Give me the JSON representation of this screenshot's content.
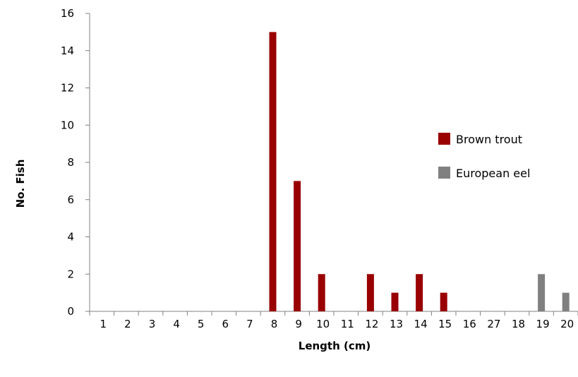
{
  "chart_data": {
    "type": "bar",
    "title": "",
    "xlabel": "Length (cm)",
    "ylabel": "No. Fish",
    "categories": [
      "1",
      "2",
      "3",
      "4",
      "5",
      "6",
      "7",
      "8",
      "9",
      "10",
      "11",
      "12",
      "13",
      "14",
      "15",
      "16",
      "27",
      "18",
      "19",
      "20"
    ],
    "ylim": [
      0,
      16
    ],
    "yticks": [
      "0",
      "2",
      "4",
      "6",
      "8",
      "10",
      "12",
      "14",
      "16"
    ],
    "grid": false,
    "legend_position": "right",
    "series": [
      {
        "name": "Brown trout",
        "color": "#990000",
        "values": [
          0,
          0,
          0,
          0,
          0,
          0,
          0,
          15,
          7,
          2,
          0,
          2,
          1,
          2,
          1,
          0,
          0,
          0,
          0,
          0
        ]
      },
      {
        "name": "European eel",
        "color": "#808080",
        "values": [
          0,
          0,
          0,
          0,
          0,
          0,
          0,
          0,
          0,
          0,
          0,
          0,
          0,
          0,
          0,
          0,
          0,
          0,
          2,
          1
        ]
      }
    ]
  }
}
